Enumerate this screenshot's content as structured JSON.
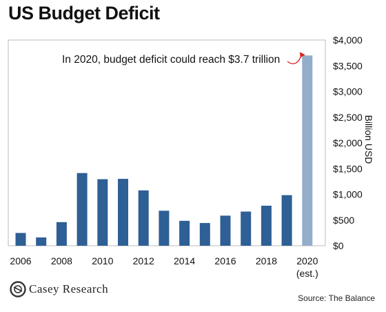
{
  "title": "US Budget Deficit",
  "chart_data": {
    "type": "bar",
    "title": "US Budget Deficit",
    "ylabel": "Billion USD",
    "xlabel": "",
    "ylim": [
      0,
      4000
    ],
    "yticks": [
      0,
      500,
      1000,
      1500,
      2000,
      2500,
      3000,
      3500,
      4000
    ],
    "ytick_labels": [
      "$0",
      "$500",
      "$1,000",
      "$1,500",
      "$2,000",
      "$2,500",
      "$3,000",
      "$3,500",
      "$4,000"
    ],
    "y_axis_position": "right",
    "grid": false,
    "categories": [
      "2006",
      "2007",
      "2008",
      "2009",
      "2010",
      "2011",
      "2012",
      "2013",
      "2014",
      "2015",
      "2016",
      "2017",
      "2018",
      "2019",
      "2020"
    ],
    "values": [
      248,
      161,
      459,
      1413,
      1294,
      1300,
      1077,
      680,
      485,
      442,
      585,
      665,
      779,
      984,
      3700
    ],
    "xtick_labels": [
      {
        "category": "2006",
        "text": "2006"
      },
      {
        "category": "2008",
        "text": "2008"
      },
      {
        "category": "2010",
        "text": "2010"
      },
      {
        "category": "2012",
        "text": "2012"
      },
      {
        "category": "2014",
        "text": "2014"
      },
      {
        "category": "2016",
        "text": "2016"
      },
      {
        "category": "2018",
        "text": "2018"
      },
      {
        "category": "2020",
        "text": "2020",
        "subtext": "(est.)"
      }
    ],
    "colors": {
      "bar": "#2e5f95",
      "estimate_bar": "#93adcb",
      "arrow": "#d8231f",
      "frame": "#bbbbbb"
    },
    "estimate_category": "2020",
    "annotation": {
      "text": "In 2020, budget deficit could reach $3.7 trillion",
      "target": "2020"
    }
  },
  "source": "Source: The Balance",
  "brand": {
    "name": "Casey Research",
    "logo_icon": "casey-research-logo"
  }
}
